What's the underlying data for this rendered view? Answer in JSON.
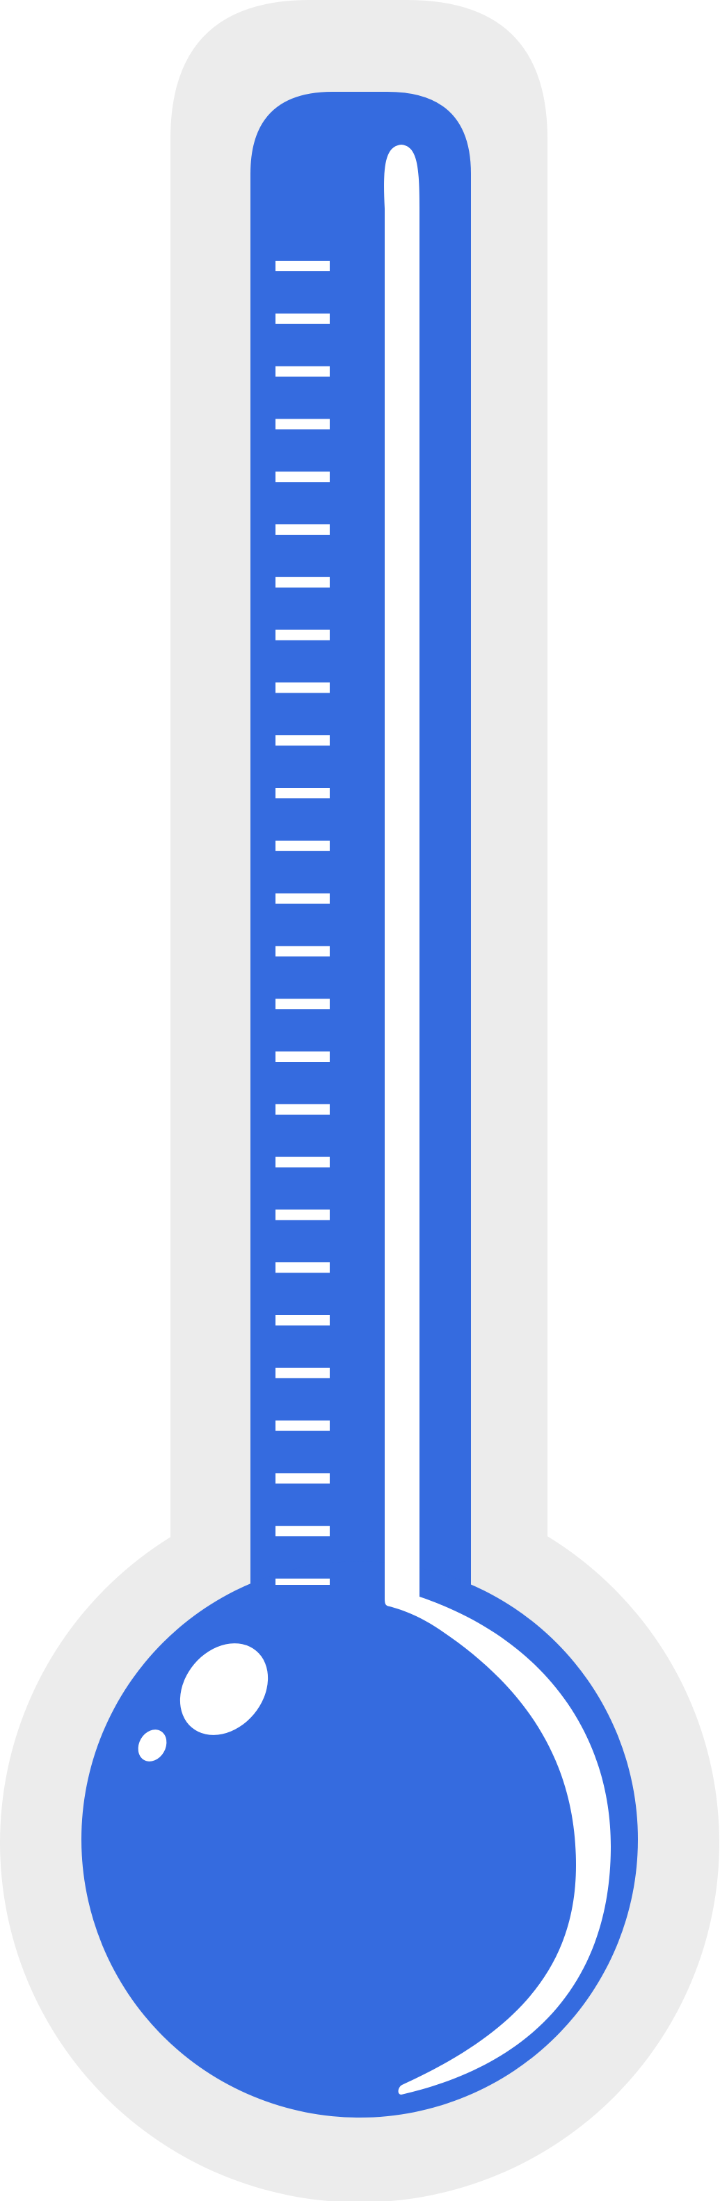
{
  "thermometer": {
    "scale_tick_count": 26,
    "fill_level": 0,
    "colors": {
      "background": "#ffffff",
      "outline": "#ececec",
      "body": "#356bdf",
      "highlight": "#ffffff"
    }
  }
}
